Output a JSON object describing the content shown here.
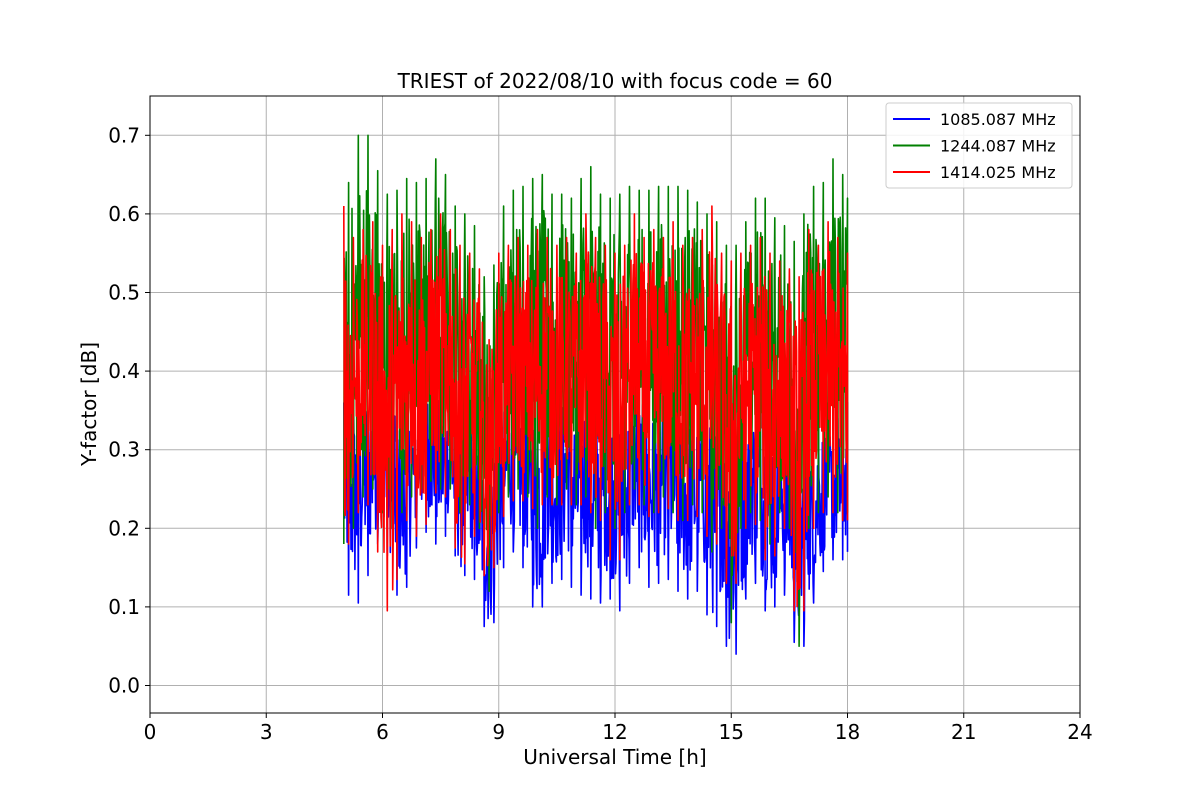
{
  "chart_data": {
    "type": "line",
    "title": "TRIEST of 2022/08/10 with focus code = 60",
    "xlabel": "Universal Time [h]",
    "ylabel": "Y-factor [dB]",
    "xlim": [
      0,
      24
    ],
    "ylim": [
      -0.035,
      0.75
    ],
    "xticks": [
      0,
      3,
      6,
      9,
      12,
      15,
      18,
      21,
      24
    ],
    "yticks": [
      0.0,
      0.1,
      0.2,
      0.3,
      0.4,
      0.5,
      0.6,
      0.7
    ],
    "ytick_labels": [
      "0.0",
      "0.1",
      "0.2",
      "0.3",
      "0.4",
      "0.5",
      "0.6",
      "0.7"
    ],
    "grid": true,
    "legend_position": "top-right",
    "series": [
      {
        "name": "1085.087 MHz",
        "color": "#0000ff",
        "x": [
          5.0,
          5.25,
          5.5,
          5.75,
          6.0,
          6.25,
          6.5,
          6.75,
          7.0,
          7.25,
          7.5,
          7.75,
          8.0,
          8.25,
          8.5,
          8.75,
          9.0,
          9.25,
          9.5,
          9.75,
          10.0,
          10.25,
          10.5,
          10.75,
          11.0,
          11.25,
          11.5,
          11.75,
          12.0,
          12.25,
          12.5,
          12.75,
          13.0,
          13.25,
          13.5,
          13.75,
          14.0,
          14.25,
          14.5,
          14.75,
          15.0,
          15.25,
          15.5,
          15.75,
          16.0,
          16.25,
          16.5,
          16.75,
          17.0,
          17.25,
          17.5,
          17.75,
          18.0
        ],
        "y_min": [
          0.14,
          0.09,
          0.12,
          0.16,
          0.2,
          0.13,
          0.1,
          0.15,
          0.2,
          0.19,
          0.17,
          0.21,
          0.12,
          0.16,
          0.11,
          0.04,
          0.12,
          0.18,
          0.16,
          0.14,
          0.06,
          0.14,
          0.12,
          0.15,
          0.1,
          0.13,
          0.09,
          0.12,
          0.1,
          0.09,
          0.17,
          0.13,
          0.12,
          0.14,
          0.13,
          0.11,
          0.11,
          0.13,
          0.05,
          0.1,
          0.0,
          0.08,
          0.14,
          0.12,
          0.07,
          0.13,
          0.1,
          0.01,
          0.09,
          0.12,
          0.17,
          0.15,
          0.17
        ],
        "y_max": [
          0.36,
          0.38,
          0.4,
          0.41,
          0.38,
          0.37,
          0.36,
          0.38,
          0.39,
          0.4,
          0.38,
          0.37,
          0.34,
          0.36,
          0.32,
          0.3,
          0.38,
          0.39,
          0.39,
          0.38,
          0.4,
          0.39,
          0.38,
          0.39,
          0.39,
          0.4,
          0.38,
          0.39,
          0.37,
          0.38,
          0.39,
          0.38,
          0.37,
          0.39,
          0.39,
          0.36,
          0.37,
          0.38,
          0.37,
          0.36,
          0.35,
          0.37,
          0.38,
          0.37,
          0.39,
          0.36,
          0.35,
          0.34,
          0.34,
          0.35,
          0.35,
          0.34,
          0.36
        ]
      },
      {
        "name": "1244.087 MHz",
        "color": "#008000",
        "x": [
          5.0,
          5.25,
          5.5,
          5.75,
          6.0,
          6.25,
          6.5,
          6.75,
          7.0,
          7.25,
          7.5,
          7.75,
          8.0,
          8.25,
          8.5,
          8.75,
          9.0,
          9.25,
          9.5,
          9.75,
          10.0,
          10.25,
          10.5,
          10.75,
          11.0,
          11.25,
          11.5,
          11.75,
          12.0,
          12.25,
          12.5,
          12.75,
          13.0,
          13.25,
          13.5,
          13.75,
          14.0,
          14.25,
          14.5,
          14.75,
          15.0,
          15.25,
          15.5,
          15.75,
          16.0,
          16.25,
          16.5,
          16.75,
          17.0,
          17.25,
          17.5,
          17.75,
          18.0
        ],
        "y_min": [
          0.18,
          0.2,
          0.24,
          0.25,
          0.22,
          0.2,
          0.22,
          0.24,
          0.25,
          0.26,
          0.25,
          0.25,
          0.22,
          0.23,
          0.2,
          0.12,
          0.22,
          0.24,
          0.25,
          0.24,
          0.2,
          0.24,
          0.23,
          0.25,
          0.23,
          0.24,
          0.2,
          0.22,
          0.2,
          0.22,
          0.25,
          0.23,
          0.22,
          0.24,
          0.22,
          0.21,
          0.23,
          0.22,
          0.17,
          0.2,
          0.08,
          0.2,
          0.22,
          0.21,
          0.18,
          0.22,
          0.2,
          0.05,
          0.2,
          0.22,
          0.24,
          0.22,
          0.22
        ],
        "y_max": [
          0.6,
          0.68,
          0.72,
          0.68,
          0.63,
          0.62,
          0.64,
          0.65,
          0.63,
          0.66,
          0.68,
          0.62,
          0.6,
          0.6,
          0.57,
          0.47,
          0.6,
          0.62,
          0.64,
          0.63,
          0.66,
          0.64,
          0.61,
          0.64,
          0.6,
          0.69,
          0.63,
          0.62,
          0.62,
          0.63,
          0.64,
          0.62,
          0.64,
          0.63,
          0.64,
          0.63,
          0.63,
          0.6,
          0.6,
          0.58,
          0.54,
          0.58,
          0.6,
          0.64,
          0.6,
          0.59,
          0.58,
          0.55,
          0.65,
          0.62,
          0.66,
          0.68,
          0.62
        ]
      },
      {
        "name": "1414.025 MHz",
        "color": "#ff0000",
        "x": [
          5.0,
          5.25,
          5.5,
          5.75,
          6.0,
          6.25,
          6.5,
          6.75,
          7.0,
          7.25,
          7.5,
          7.75,
          8.0,
          8.25,
          8.5,
          8.75,
          9.0,
          9.25,
          9.5,
          9.75,
          10.0,
          10.25,
          10.5,
          10.75,
          11.0,
          11.25,
          11.5,
          11.75,
          12.0,
          12.25,
          12.5,
          12.75,
          13.0,
          13.25,
          13.5,
          13.75,
          14.0,
          14.25,
          14.5,
          14.75,
          15.0,
          15.25,
          15.5,
          15.75,
          16.0,
          16.25,
          16.5,
          16.75,
          17.0,
          17.25,
          17.5,
          17.75,
          18.0
        ],
        "y_min": [
          0.16,
          0.2,
          0.24,
          0.22,
          0.12,
          0.07,
          0.2,
          0.22,
          0.16,
          0.25,
          0.24,
          0.24,
          0.11,
          0.2,
          0.18,
          0.1,
          0.2,
          0.23,
          0.24,
          0.23,
          0.22,
          0.24,
          0.22,
          0.24,
          0.22,
          0.24,
          0.2,
          0.22,
          0.1,
          0.22,
          0.24,
          0.22,
          0.21,
          0.23,
          0.22,
          0.2,
          0.22,
          0.21,
          0.17,
          0.19,
          0.07,
          0.19,
          0.21,
          0.2,
          0.12,
          0.21,
          0.19,
          0.0,
          0.19,
          0.21,
          0.23,
          0.21,
          0.21
        ],
        "y_max": [
          0.61,
          0.57,
          0.58,
          0.59,
          0.56,
          0.58,
          0.6,
          0.59,
          0.57,
          0.58,
          0.6,
          0.58,
          0.56,
          0.55,
          0.53,
          0.44,
          0.55,
          0.56,
          0.57,
          0.56,
          0.58,
          0.57,
          0.56,
          0.57,
          0.55,
          0.6,
          0.57,
          0.56,
          0.55,
          0.56,
          0.6,
          0.57,
          0.58,
          0.57,
          0.59,
          0.56,
          0.57,
          0.58,
          0.61,
          0.55,
          0.54,
          0.55,
          0.56,
          0.57,
          0.55,
          0.54,
          0.53,
          0.52,
          0.58,
          0.56,
          0.59,
          0.57,
          0.55
        ]
      }
    ]
  }
}
